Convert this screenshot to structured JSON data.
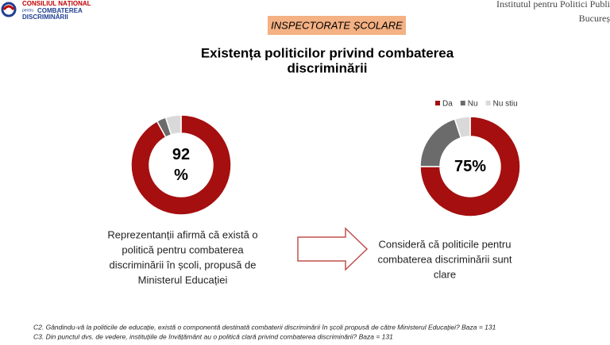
{
  "header": {
    "logo": [
      "CONSILIUL NAȚIONAL",
      "pentru",
      "COMBATEREA",
      "DISCRIMINĂRII"
    ],
    "institute": [
      "Institutul pentru Politici Publi",
      "Bucureș"
    ],
    "section": "INSPECTORATE ȘCOLARE"
  },
  "title": [
    "Existența politicilor privind combaterea",
    "discriminării"
  ],
  "chart_data": [
    {
      "type": "pie",
      "categories": [
        "Da",
        "Nu",
        "Nu stiu"
      ],
      "values": [
        92,
        3,
        5
      ],
      "value_labels": [
        "92 %",
        null,
        null
      ],
      "colors": [
        "#a50f0f",
        "#6b6b6b",
        "#d9d9d9"
      ],
      "legend": false
    },
    {
      "type": "pie",
      "categories": [
        "Da",
        "Nu",
        "Nu stiu"
      ],
      "values": [
        75,
        20,
        5
      ],
      "value_labels": [
        "75%",
        null,
        null
      ],
      "colors": [
        "#a50f0f",
        "#6b6b6b",
        "#d9d9d9"
      ],
      "legend": true
    }
  ],
  "captions": [
    [
      "Reprezentanții afirmă că există o",
      "politică pentru combaterea",
      "discriminării în școli, propusă de",
      "Ministerul Educației"
    ],
    [
      "Consideră că politicile pentru",
      "combaterea discriminării sunt",
      "clare"
    ]
  ],
  "footnotes": [
    "C2. Gândindu-vă la politicile de educație, există o componentă destinată combaterii discriminării în școli propusă de către Ministerul Educației? Baza = 131",
    "C3. Din punctul dvs. de vedere, instituțiile de învățământ au o politică clară privind combaterea discriminării? Baza = 131"
  ]
}
